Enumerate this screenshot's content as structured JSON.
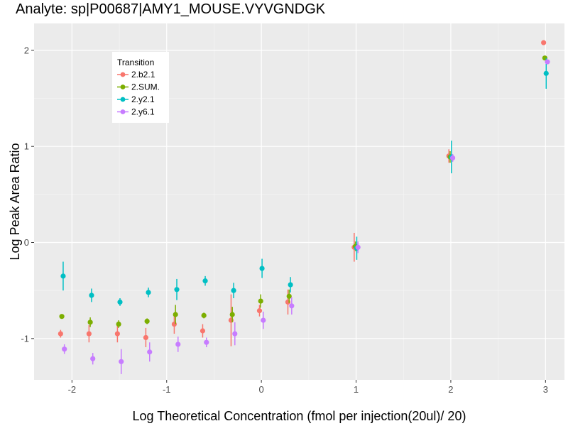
{
  "chart_data": {
    "type": "scatter",
    "title": "Analyte: sp|P00687|AMY1_MOUSE.VYVGNDGK",
    "xlabel": "Log Theoretical Concentration (fmol per injection(20ul)/ 20)",
    "ylabel": "Log Peak Area Ratio",
    "xlim": [
      -2.4,
      3.2
    ],
    "ylim": [
      -1.43,
      2.28
    ],
    "x_ticks": [
      -2,
      -1,
      0,
      1,
      2,
      3
    ],
    "x_tick_labels": [
      "-2",
      "-1",
      "0",
      "1",
      "2",
      "3"
    ],
    "y_ticks": [
      -1,
      0,
      1,
      2
    ],
    "y_tick_labels": [
      "-1",
      "0",
      "1",
      "2"
    ],
    "grid": true,
    "legend": {
      "title": "Transition",
      "placement": "top-left"
    },
    "series": [
      {
        "name": "2.b2.1",
        "color": "#F8766D",
        "points": [
          {
            "x": -2.1,
            "y": -0.95,
            "err": 0.04
          },
          {
            "x": -1.8,
            "y": -0.95,
            "err": 0.09
          },
          {
            "x": -1.5,
            "y": -0.95,
            "err": 0.09
          },
          {
            "x": -1.2,
            "y": -0.99,
            "err": 0.1
          },
          {
            "x": -0.9,
            "y": -0.85,
            "err": 0.1
          },
          {
            "x": -0.6,
            "y": -0.92,
            "err": 0.07
          },
          {
            "x": -0.3,
            "y": -0.81,
            "err": 0.27
          },
          {
            "x": 0.0,
            "y": -0.71,
            "err": 0.06
          },
          {
            "x": 0.3,
            "y": -0.62,
            "err": 0.13
          },
          {
            "x": 1.0,
            "y": -0.05,
            "err": 0.15
          },
          {
            "x": 2.0,
            "y": 0.9,
            "err": 0.07
          },
          {
            "x": 3.0,
            "y": 2.08,
            "err": 0.02
          }
        ]
      },
      {
        "name": "2.SUM.",
        "color": "#7CAE00",
        "points": [
          {
            "x": -2.1,
            "y": -0.77,
            "err": 0.02
          },
          {
            "x": -1.8,
            "y": -0.83,
            "err": 0.05
          },
          {
            "x": -1.5,
            "y": -0.85,
            "err": 0.04
          },
          {
            "x": -1.2,
            "y": -0.82,
            "err": 0.03
          },
          {
            "x": -0.9,
            "y": -0.75,
            "err": 0.1
          },
          {
            "x": -0.6,
            "y": -0.76,
            "err": 0.03
          },
          {
            "x": -0.3,
            "y": -0.75,
            "err": 0.08
          },
          {
            "x": 0.0,
            "y": -0.61,
            "err": 0.07
          },
          {
            "x": 0.3,
            "y": -0.56,
            "err": 0.07
          },
          {
            "x": 1.0,
            "y": -0.04,
            "err": 0.05
          },
          {
            "x": 2.0,
            "y": 0.89,
            "err": 0.06
          },
          {
            "x": 3.0,
            "y": 1.92,
            "err": 0.02
          }
        ]
      },
      {
        "name": "2.y2.1",
        "color": "#00BFC4",
        "points": [
          {
            "x": -2.1,
            "y": -0.35,
            "err": 0.15
          },
          {
            "x": -1.8,
            "y": -0.55,
            "err": 0.07
          },
          {
            "x": -1.5,
            "y": -0.62,
            "err": 0.04
          },
          {
            "x": -1.2,
            "y": -0.52,
            "err": 0.05
          },
          {
            "x": -0.9,
            "y": -0.49,
            "err": 0.11
          },
          {
            "x": -0.6,
            "y": -0.4,
            "err": 0.05
          },
          {
            "x": -0.3,
            "y": -0.5,
            "err": 0.08
          },
          {
            "x": 0.0,
            "y": -0.27,
            "err": 0.1
          },
          {
            "x": 0.3,
            "y": -0.44,
            "err": 0.08
          },
          {
            "x": 1.0,
            "y": -0.06,
            "err": 0.12
          },
          {
            "x": 2.0,
            "y": 0.89,
            "err": 0.17
          },
          {
            "x": 3.0,
            "y": 1.76,
            "err": 0.16
          }
        ]
      },
      {
        "name": "2.y6.1",
        "color": "#C77CFF",
        "points": [
          {
            "x": -2.1,
            "y": -1.11,
            "err": 0.05
          },
          {
            "x": -1.8,
            "y": -1.21,
            "err": 0.06
          },
          {
            "x": -1.5,
            "y": -1.24,
            "err": 0.13
          },
          {
            "x": -1.2,
            "y": -1.14,
            "err": 0.1
          },
          {
            "x": -0.9,
            "y": -1.06,
            "err": 0.08
          },
          {
            "x": -0.6,
            "y": -1.04,
            "err": 0.05
          },
          {
            "x": -0.3,
            "y": -0.95,
            "err": 0.12
          },
          {
            "x": 0.0,
            "y": -0.81,
            "err": 0.09
          },
          {
            "x": 0.3,
            "y": -0.66,
            "err": 0.09
          },
          {
            "x": 1.0,
            "y": -0.05,
            "err": 0.06
          },
          {
            "x": 2.0,
            "y": 0.88,
            "err": 0.04
          },
          {
            "x": 3.0,
            "y": 1.88,
            "err": 0.02
          }
        ]
      }
    ]
  }
}
